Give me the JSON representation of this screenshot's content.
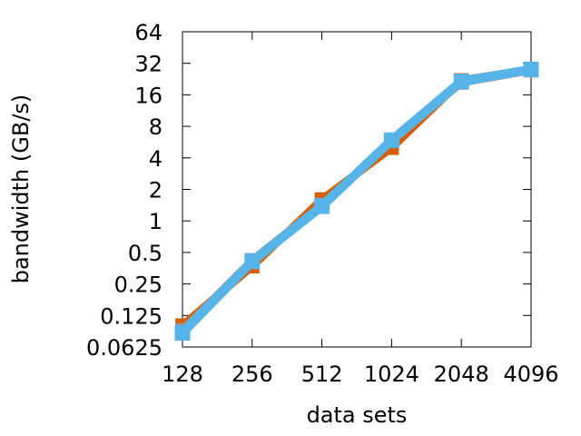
{
  "chart_data": {
    "type": "line",
    "title": "",
    "xlabel": "data sets",
    "ylabel": "bandwidth (GB/s)",
    "x_scale": "log2",
    "y_scale": "log2",
    "categories": [
      "128",
      "256",
      "512",
      "1024",
      "2048",
      "4096"
    ],
    "x": [
      128,
      256,
      512,
      1024,
      2048,
      4096
    ],
    "xlim": [
      128,
      4096
    ],
    "ylim": [
      0.0625,
      64
    ],
    "y_ticks": [
      0.0625,
      0.125,
      0.25,
      0.5,
      1,
      2,
      4,
      8,
      16,
      32,
      64
    ],
    "y_tick_labels": [
      "0.0625",
      "0.125",
      "0.25",
      "0.5",
      "1",
      "2",
      "4",
      "8",
      "16",
      "32",
      "64"
    ],
    "grid": false,
    "legend": "none",
    "series": [
      {
        "values": [
          0.1,
          0.37,
          1.6,
          5.0,
          22,
          28
        ],
        "color": "#d55e00",
        "marker": "square"
      },
      {
        "values": [
          0.09,
          0.42,
          1.42,
          5.8,
          21,
          27.5
        ],
        "color": "#999999",
        "marker": "square"
      },
      {
        "values": [
          0.085,
          0.41,
          1.38,
          5.9,
          21.5,
          28
        ],
        "color": "#56b4e9",
        "marker": "square"
      }
    ]
  }
}
